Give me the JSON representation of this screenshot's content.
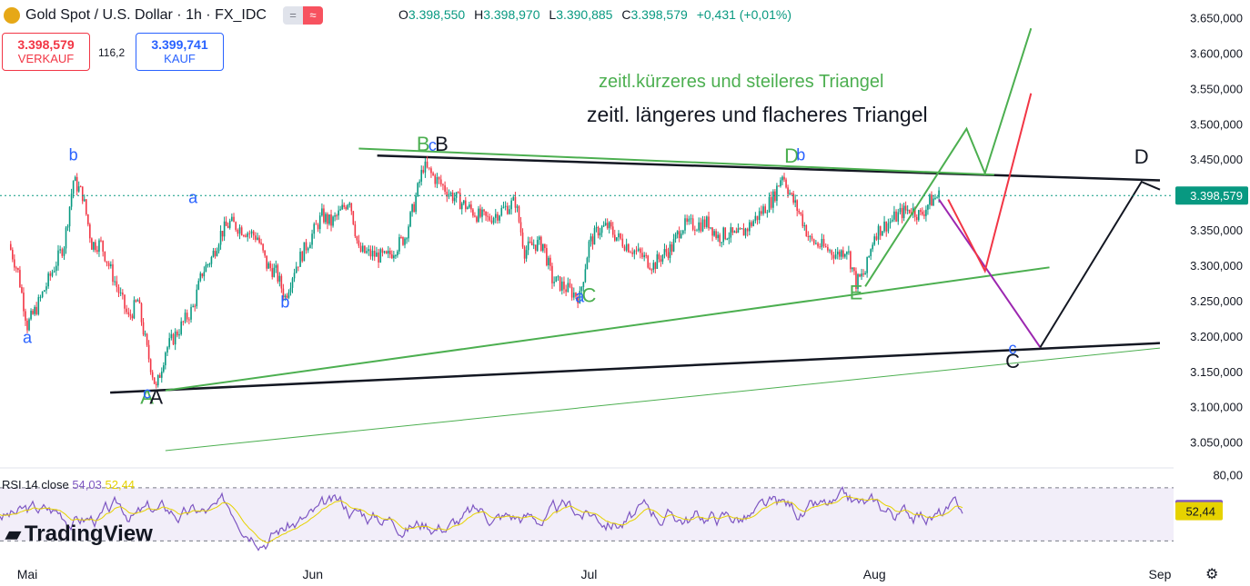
{
  "header": {
    "symbol": "Gold Spot / U.S. Dollar · 1h · FX_IDC",
    "ohlc": {
      "o_label": "O",
      "o": "3.398,550",
      "h_label": "H",
      "h": "3.398,970",
      "l_label": "L",
      "l": "3.390,885",
      "c_label": "C",
      "c": "3.398,579",
      "change": "+0,431 (+0,01%)"
    },
    "sell_price": "3.398,579",
    "sell_label": "VERKAUF",
    "buy_price": "3.399,741",
    "buy_label": "KAUF",
    "spread": "116,2"
  },
  "branding": {
    "logo_text": "TradingView"
  },
  "rsi_label": {
    "name": "RSI 14 close",
    "value1": "54,03",
    "value2": "52,44"
  },
  "colors": {
    "up": "#089981",
    "down": "#f23645",
    "green_line": "#4caf50",
    "black_line": "#131722",
    "purple": "#9c27b0",
    "red": "#f23645",
    "blue_label": "#2962ff",
    "rsi": "#7e57c2",
    "rsi_ma": "#e6d200",
    "price_tag": "#089981"
  },
  "annotations": {
    "title_green": "zeitl.kürzeres und steileres Triangel",
    "title_black": "zeitl. längeres und flacheres Triangel",
    "wave_labels": [
      {
        "t": "b",
        "c": "blue",
        "x": "2025-05-06",
        "y": 3448
      },
      {
        "t": "a",
        "c": "blue",
        "x": "2025-05-01",
        "y": 3190
      },
      {
        "t": "a",
        "c": "blue",
        "x": "2025-05-19",
        "y": 3388
      },
      {
        "t": "b",
        "c": "blue",
        "x": "2025-05-29",
        "y": 3240
      },
      {
        "t": "B",
        "c": "green",
        "x": "2025-06-13",
        "y": 3462
      },
      {
        "t": "c",
        "c": "blue",
        "x": "2025-06-14",
        "y": 3462
      },
      {
        "t": "B",
        "c": "black",
        "x": "2025-06-15",
        "y": 3462
      },
      {
        "t": "a",
        "c": "blue",
        "x": "2025-06-30",
        "y": 3248
      },
      {
        "t": "C",
        "c": "green",
        "x": "2025-07-01",
        "y": 3248
      },
      {
        "t": "D",
        "c": "green",
        "x": "2025-07-23",
        "y": 3445
      },
      {
        "t": "b",
        "c": "blue",
        "x": "2025-07-24",
        "y": 3448
      },
      {
        "t": "E",
        "c": "green",
        "x": "2025-07-30",
        "y": 3252
      },
      {
        "t": "A",
        "c": "green",
        "x": "2025-05-14",
        "y": 3104
      },
      {
        "t": "c",
        "c": "blue",
        "x": "2025-05-14",
        "y": 3112
      },
      {
        "t": "A",
        "c": "black",
        "x": "2025-05-15",
        "y": 3104
      },
      {
        "t": "c",
        "c": "blue",
        "x": "2025-08-16",
        "y": 3175
      },
      {
        "t": "C",
        "c": "black",
        "x": "2025-08-16",
        "y": 3155
      },
      {
        "t": "D",
        "c": "black",
        "x": "2025-08-30",
        "y": 3444
      }
    ]
  },
  "chart_data": {
    "type": "candlestick",
    "x_ticks": [
      "Mai",
      "Jun",
      "Jul",
      "Aug",
      "Sep"
    ],
    "y_ticks": [
      "3.650,000",
      "3.600,000",
      "3.550,000",
      "3.500,000",
      "3.450,000",
      "3.400,000",
      "3.350,000",
      "3.300,000",
      "3.250,000",
      "3.200,000",
      "3.150,000",
      "3.100,000",
      "3.050,000"
    ],
    "ylim": [
      3020,
      3675
    ],
    "last_price": "3.398,579",
    "last_value": 3398.579,
    "price_path": [
      {
        "x": "2025-04-29",
        "y": 3330
      },
      {
        "x": "2025-04-30",
        "y": 3290
      },
      {
        "x": "2025-05-01",
        "y": 3215
      },
      {
        "x": "2025-05-02",
        "y": 3240
      },
      {
        "x": "2025-05-05",
        "y": 3330
      },
      {
        "x": "2025-05-06",
        "y": 3420
      },
      {
        "x": "2025-05-07",
        "y": 3400
      },
      {
        "x": "2025-05-08",
        "y": 3330
      },
      {
        "x": "2025-05-09",
        "y": 3330
      },
      {
        "x": "2025-05-12",
        "y": 3225
      },
      {
        "x": "2025-05-13",
        "y": 3250
      },
      {
        "x": "2025-05-14",
        "y": 3180
      },
      {
        "x": "2025-05-15",
        "y": 3125
      },
      {
        "x": "2025-05-16",
        "y": 3180
      },
      {
        "x": "2025-05-19",
        "y": 3240
      },
      {
        "x": "2025-05-20",
        "y": 3290
      },
      {
        "x": "2025-05-21",
        "y": 3310
      },
      {
        "x": "2025-05-22",
        "y": 3345
      },
      {
        "x": "2025-05-23",
        "y": 3360
      },
      {
        "x": "2025-05-26",
        "y": 3340
      },
      {
        "x": "2025-05-27",
        "y": 3300
      },
      {
        "x": "2025-05-28",
        "y": 3290
      },
      {
        "x": "2025-05-29",
        "y": 3255
      },
      {
        "x": "2025-05-30",
        "y": 3295
      },
      {
        "x": "2025-06-02",
        "y": 3370
      },
      {
        "x": "2025-06-03",
        "y": 3360
      },
      {
        "x": "2025-06-04",
        "y": 3375
      },
      {
        "x": "2025-06-05",
        "y": 3395
      },
      {
        "x": "2025-06-06",
        "y": 3320
      },
      {
        "x": "2025-06-09",
        "y": 3310
      },
      {
        "x": "2025-06-10",
        "y": 3325
      },
      {
        "x": "2025-06-11",
        "y": 3340
      },
      {
        "x": "2025-06-12",
        "y": 3385
      },
      {
        "x": "2025-06-13",
        "y": 3440
      },
      {
        "x": "2025-06-16",
        "y": 3400
      },
      {
        "x": "2025-06-17",
        "y": 3390
      },
      {
        "x": "2025-06-18",
        "y": 3380
      },
      {
        "x": "2025-06-19",
        "y": 3370
      },
      {
        "x": "2025-06-20",
        "y": 3365
      },
      {
        "x": "2025-06-23",
        "y": 3390
      },
      {
        "x": "2025-06-24",
        "y": 3320
      },
      {
        "x": "2025-06-25",
        "y": 3330
      },
      {
        "x": "2025-06-26",
        "y": 3330
      },
      {
        "x": "2025-06-27",
        "y": 3280
      },
      {
        "x": "2025-06-30",
        "y": 3255
      },
      {
        "x": "2025-07-01",
        "y": 3330
      },
      {
        "x": "2025-07-02",
        "y": 3350
      },
      {
        "x": "2025-07-03",
        "y": 3355
      },
      {
        "x": "2025-07-04",
        "y": 3340
      },
      {
        "x": "2025-07-07",
        "y": 3310
      },
      {
        "x": "2025-07-08",
        "y": 3300
      },
      {
        "x": "2025-07-09",
        "y": 3315
      },
      {
        "x": "2025-07-10",
        "y": 3325
      },
      {
        "x": "2025-07-11",
        "y": 3355
      },
      {
        "x": "2025-07-14",
        "y": 3360
      },
      {
        "x": "2025-07-15",
        "y": 3340
      },
      {
        "x": "2025-07-16",
        "y": 3345
      },
      {
        "x": "2025-07-17",
        "y": 3340
      },
      {
        "x": "2025-07-18",
        "y": 3350
      },
      {
        "x": "2025-07-21",
        "y": 3395
      },
      {
        "x": "2025-07-22",
        "y": 3430
      },
      {
        "x": "2025-07-23",
        "y": 3395
      },
      {
        "x": "2025-07-24",
        "y": 3370
      },
      {
        "x": "2025-07-25",
        "y": 3335
      },
      {
        "x": "2025-07-28",
        "y": 3315
      },
      {
        "x": "2025-07-29",
        "y": 3325
      },
      {
        "x": "2025-07-30",
        "y": 3275
      },
      {
        "x": "2025-07-31",
        "y": 3290
      },
      {
        "x": "2025-08-01",
        "y": 3345
      },
      {
        "x": "2025-08-04",
        "y": 3375
      },
      {
        "x": "2025-08-05",
        "y": 3380
      },
      {
        "x": "2025-08-06",
        "y": 3370
      },
      {
        "x": "2025-08-07",
        "y": 3390
      },
      {
        "x": "2025-08-08",
        "y": 3398.579
      }
    ],
    "drawings": {
      "black_lines": [
        {
          "from": {
            "x": "2025-05-10",
            "y": 3120
          },
          "to": {
            "x": "2025-09-01",
            "y": 3190
          }
        },
        {
          "from": {
            "x": "2025-06-08",
            "y": 3455
          },
          "to": {
            "x": "2025-09-01",
            "y": 3420
          }
        }
      ],
      "green_lines": [
        {
          "from": {
            "x": "2025-06-06",
            "y": 3465
          },
          "to": {
            "x": "2025-08-14",
            "y": 3428
          }
        },
        {
          "from": {
            "x": "2025-05-16",
            "y": 3123
          },
          "to": {
            "x": "2025-08-20",
            "y": 3297
          }
        }
      ],
      "thin_green_line": {
        "from": {
          "x": "2025-05-16",
          "y": 3038
        },
        "to": {
          "x": "2025-09-01",
          "y": 3183
        }
      },
      "projection_purple": [
        {
          "x": "2025-08-08",
          "y": 3393
        },
        {
          "x": "2025-08-19",
          "y": 3184
        }
      ],
      "projection_black": [
        {
          "x": "2025-08-19",
          "y": 3184
        },
        {
          "x": "2025-08-30",
          "y": 3418
        },
        {
          "x": "2025-09-01",
          "y": 3407
        }
      ],
      "projection_red": [
        {
          "x": "2025-08-09",
          "y": 3393
        },
        {
          "x": "2025-08-13",
          "y": 3292
        },
        {
          "x": "2025-08-18",
          "y": 3543
        }
      ],
      "projection_green": [
        {
          "x": "2025-07-31",
          "y": 3270
        },
        {
          "x": "2025-08-11",
          "y": 3493
        },
        {
          "x": "2025-08-13",
          "y": 3430
        },
        {
          "x": "2025-08-18",
          "y": 3635
        }
      ]
    },
    "rsi": {
      "levels": [
        70,
        30
      ],
      "current": 54.03,
      "ma": 52.44,
      "top_tick": "80,00"
    }
  }
}
